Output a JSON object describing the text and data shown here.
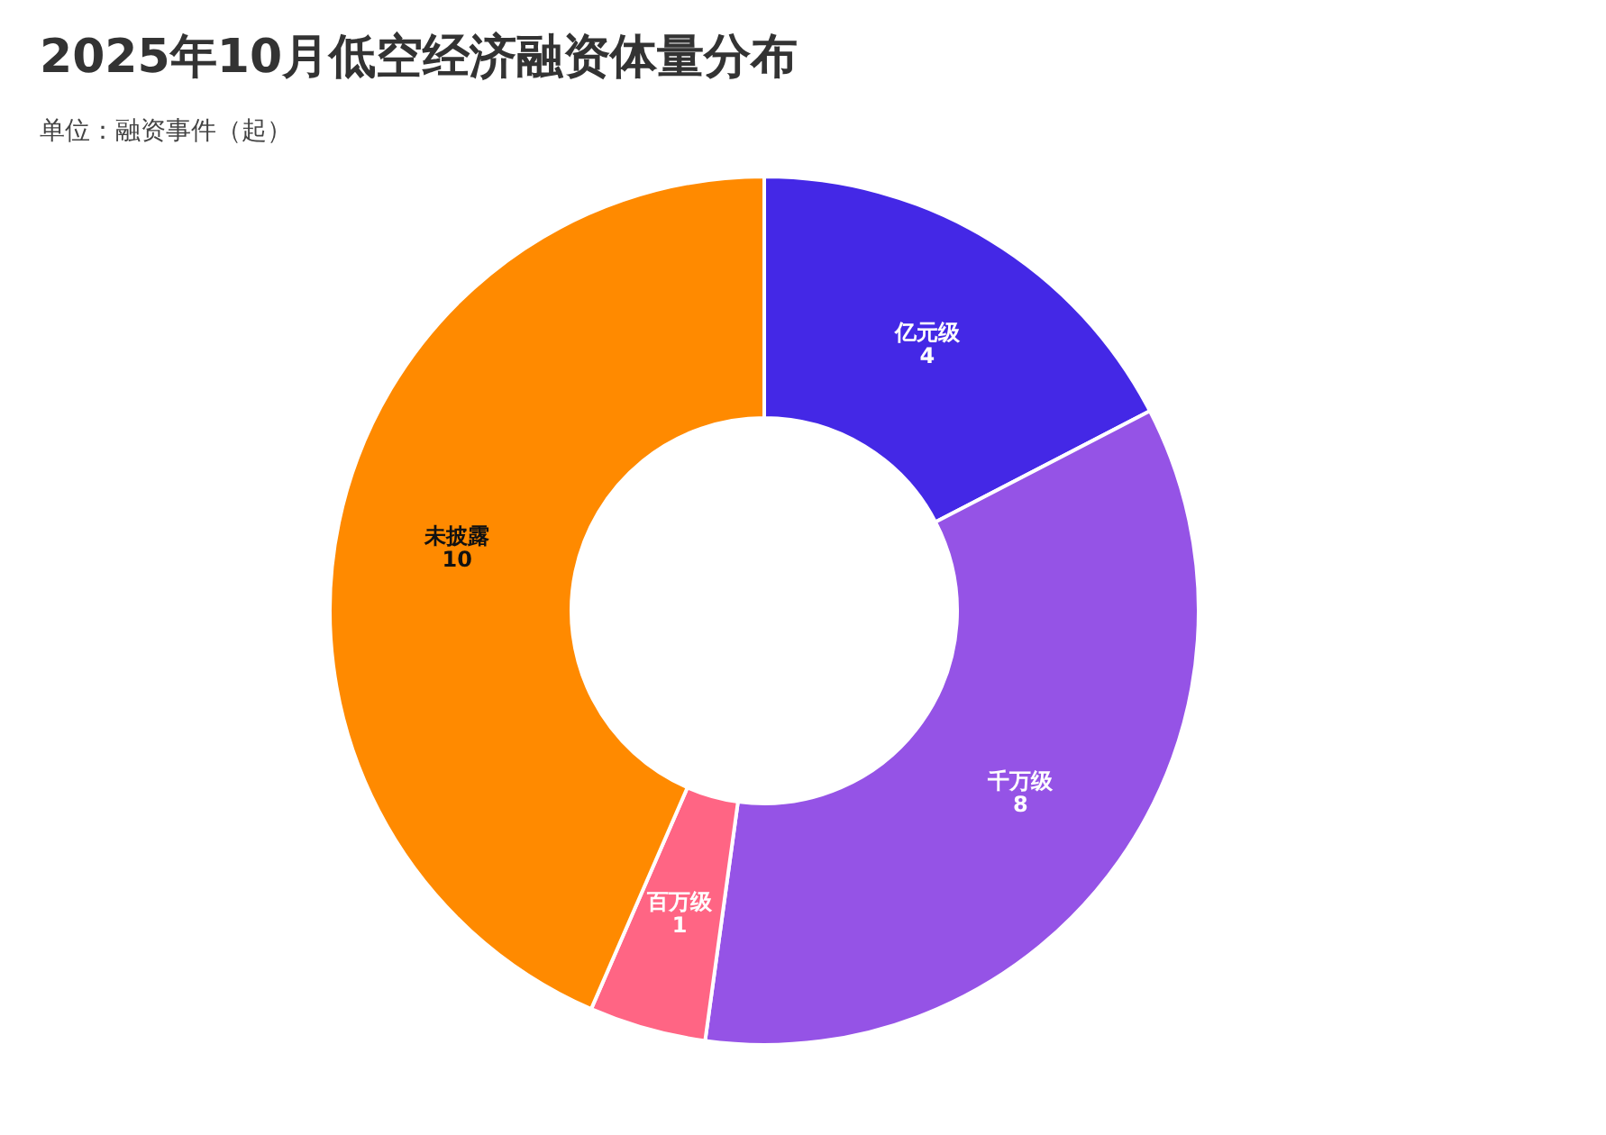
{
  "chart_data": {
    "type": "donut",
    "title": "2025年10月低空经济融资体量分布",
    "subtitle": "单位：融资事件（起）",
    "categories": [
      "亿元级",
      "千万级",
      "百万级",
      "未披露"
    ],
    "values": [
      4,
      8,
      1,
      10
    ],
    "colors": [
      "#4428e6",
      "#9553e6",
      "#ff6584",
      "#ff8a00"
    ],
    "data_labels": true
  }
}
